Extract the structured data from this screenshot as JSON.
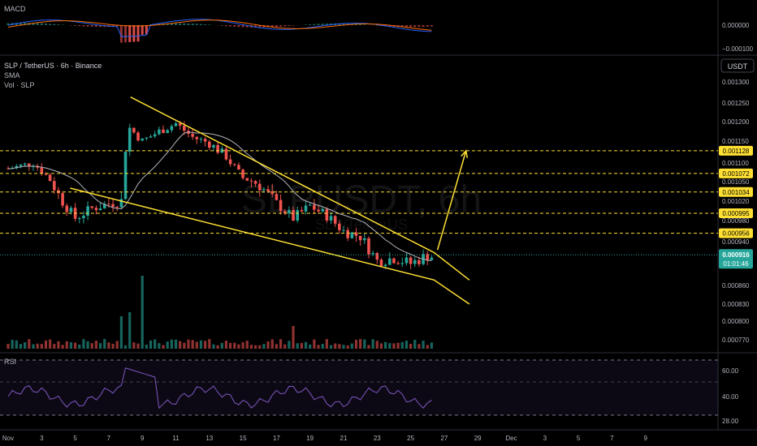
{
  "title": "SLP / TetherUS · 6h · Binance",
  "indicators": [
    "SMA",
    "Vol · SLP"
  ],
  "watermark": "SLPUSDT, 6h",
  "watermark_sub": "SLP/TetherUS",
  "currency_button": "USDT",
  "macd": {
    "label": "MACD",
    "scale": [
      "0.000000",
      "−0.000100"
    ]
  },
  "rsi": {
    "label": "RSI",
    "scale": [
      "60.00",
      "40.00",
      "28.00"
    ]
  },
  "chart_data": {
    "type": "candlestick",
    "price_scale": [
      "0.001300",
      "0.001250",
      "0.001200",
      "0.001150",
      "0.001100",
      "0.001050",
      "0.001020",
      "0.000980",
      "0.000940",
      "0.000860",
      "0.000830",
      "0.000800",
      "0.000770"
    ],
    "x_ticks": [
      "Nov",
      "3",
      "5",
      "7",
      "9",
      "11",
      "13",
      "15",
      "17",
      "19",
      "21",
      "23",
      "25",
      "27",
      "29",
      "Dec",
      "3",
      "5",
      "7",
      "9"
    ],
    "levels": [
      {
        "label": "0.001128",
        "value": 0.001128
      },
      {
        "label": "0.001072",
        "value": 0.001072
      },
      {
        "label": "0.001034",
        "value": 0.001034
      },
      {
        "label": "0.000995",
        "value": 0.000995
      },
      {
        "label": "0.000956",
        "value": 0.000956
      }
    ],
    "last_price": {
      "label": "0.000916",
      "value": 0.000916,
      "countdown": "01:01:46"
    },
    "pattern": {
      "upper_line": [
        {
          "x": 8.3,
          "y": 0.001264
        },
        {
          "x": 26.4,
          "y": 0.00092
        },
        {
          "x": 28.5,
          "y": 0.00087
        }
      ],
      "lower_line": [
        {
          "x": 4.7,
          "y": 0.00104
        },
        {
          "x": 26.4,
          "y": 0.00087
        },
        {
          "x": 28.5,
          "y": 0.00083
        }
      ],
      "arrow": [
        {
          "x": 26.6,
          "y": 0.000925
        },
        {
          "x": 28.3,
          "y": 0.001128
        }
      ]
    }
  },
  "colors": {
    "up": "#26a69a",
    "down": "#ef5350",
    "sma": "#b2b5be",
    "pattern": "#ffe033",
    "level_label_bg": "#ffe033",
    "last_price_bg": "#26a69a",
    "macd_line": "#2962ff",
    "signal_line": "#ff6d00",
    "rsi_line": "#7e57c2"
  }
}
